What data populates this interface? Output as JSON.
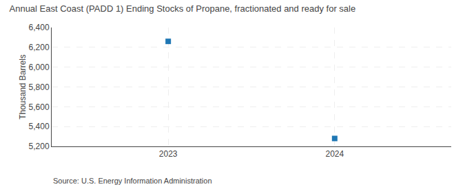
{
  "chart_data": {
    "type": "scatter",
    "title": "Annual East Coast (PADD 1) Ending Stocks of Propane, fractionated and ready for sale",
    "y_label": "Thousand Barrels",
    "annotations": [
      "Source: U.S. Energy Information Administration"
    ],
    "x": [
      2023,
      2024
    ],
    "values": [
      6260,
      5280
    ],
    "marker": "square",
    "xlim": [
      2022.3,
      2024.7
    ],
    "xticks": [
      2023,
      2024
    ],
    "ylim": [
      5200,
      6400
    ],
    "yticks": [
      {
        "value": 5200,
        "label": "5,200"
      },
      {
        "value": 5400,
        "label": "5,400"
      },
      {
        "value": 5600,
        "label": "5,600"
      },
      {
        "value": 5800,
        "label": "5,800"
      },
      {
        "value": 6000,
        "label": "6,000"
      },
      {
        "value": 6200,
        "label": "6,200"
      },
      {
        "value": 6400,
        "label": "6,400"
      }
    ],
    "grid": true
  }
}
